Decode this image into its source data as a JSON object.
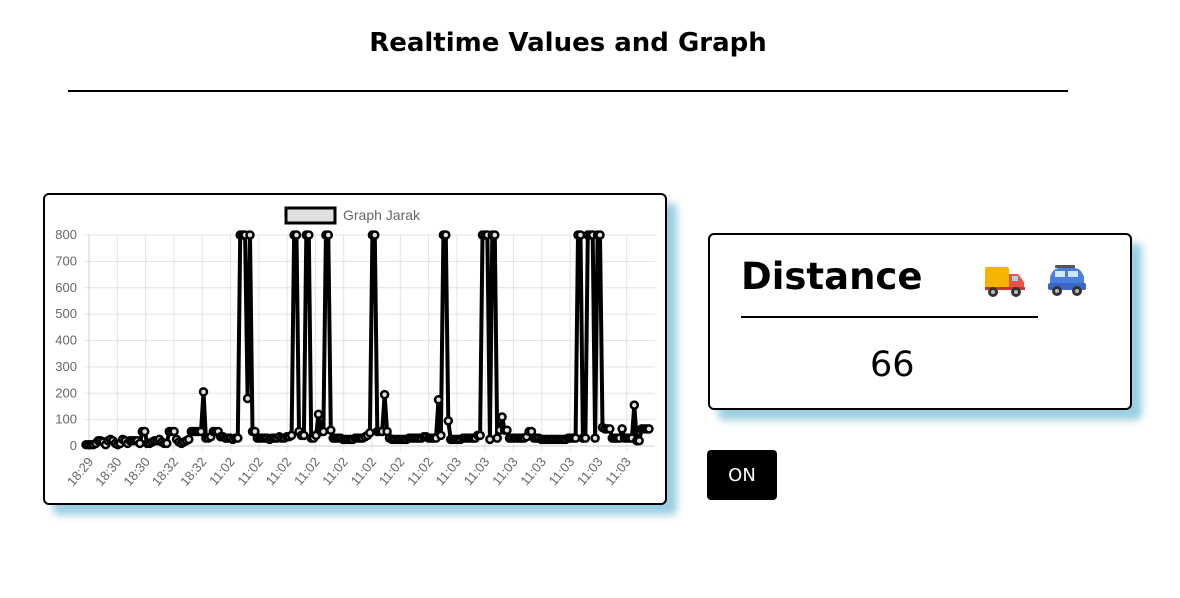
{
  "page": {
    "title": "Realtime Values and Graph"
  },
  "distance_card": {
    "title": "Distance",
    "value": "66",
    "icons": [
      "delivery-truck-icon",
      "car-icon"
    ]
  },
  "controls": {
    "toggle_label": "ON"
  },
  "chart_data": {
    "type": "line",
    "title": "",
    "xlabel": "",
    "ylabel": "",
    "ylim": [
      0,
      800
    ],
    "yticks": [
      0,
      100,
      200,
      300,
      400,
      500,
      600,
      700,
      800
    ],
    "xtick_labels": [
      "18:29",
      "18:30",
      "18:30",
      "18:32",
      "18:32",
      "11:02",
      "11:02",
      "11:02",
      "11:02",
      "11:02",
      "11:02",
      "11:02",
      "11:02",
      "11:03",
      "11:03",
      "11:03",
      "11:03",
      "11:03",
      "11:03",
      "11:03"
    ],
    "grid": true,
    "legend": "top-center",
    "series": [
      {
        "name": "Graph Jarak",
        "color": "#000000",
        "point_fill": "#e0e0e0",
        "values": [
          5,
          5,
          5,
          5,
          10,
          20,
          20,
          15,
          5,
          20,
          25,
          20,
          10,
          5,
          10,
          25,
          20,
          10,
          20,
          20,
          20,
          20,
          10,
          55,
          55,
          10,
          10,
          15,
          20,
          20,
          25,
          15,
          10,
          10,
          55,
          55,
          55,
          25,
          15,
          10,
          15,
          20,
          25,
          55,
          55,
          55,
          55,
          55,
          205,
          30,
          30,
          35,
          55,
          55,
          55,
          35,
          35,
          30,
          30,
          30,
          25,
          30,
          30,
          800,
          800,
          800,
          180,
          800,
          55,
          55,
          30,
          30,
          30,
          30,
          30,
          25,
          30,
          30,
          30,
          35,
          30,
          30,
          35,
          35,
          40,
          800,
          800,
          55,
          40,
          40,
          800,
          800,
          30,
          30,
          40,
          120,
          55,
          55,
          800,
          800,
          60,
          30,
          30,
          30,
          30,
          25,
          25,
          25,
          25,
          25,
          30,
          30,
          30,
          30,
          35,
          40,
          50,
          800,
          800,
          55,
          55,
          55,
          195,
          55,
          30,
          25,
          25,
          25,
          25,
          25,
          25,
          25,
          30,
          30,
          30,
          30,
          30,
          30,
          35,
          35,
          30,
          30,
          30,
          30,
          175,
          40,
          800,
          800,
          95,
          25,
          25,
          25,
          25,
          25,
          30,
          30,
          30,
          30,
          30,
          30,
          40,
          40,
          800,
          800,
          800,
          25,
          800,
          800,
          30,
          60,
          110,
          60,
          60,
          30,
          30,
          30,
          30,
          30,
          30,
          30,
          35,
          55,
          55,
          30,
          30,
          30,
          25,
          25,
          25,
          25,
          25,
          25,
          25,
          25,
          25,
          25,
          25,
          30,
          30,
          30,
          30,
          800,
          800,
          30,
          30,
          800,
          800,
          800,
          30,
          800,
          800,
          70,
          65,
          65,
          65,
          30,
          30,
          30,
          30,
          65,
          30,
          30,
          30,
          30,
          155,
          20,
          20,
          65,
          65,
          65,
          65
        ]
      }
    ]
  }
}
